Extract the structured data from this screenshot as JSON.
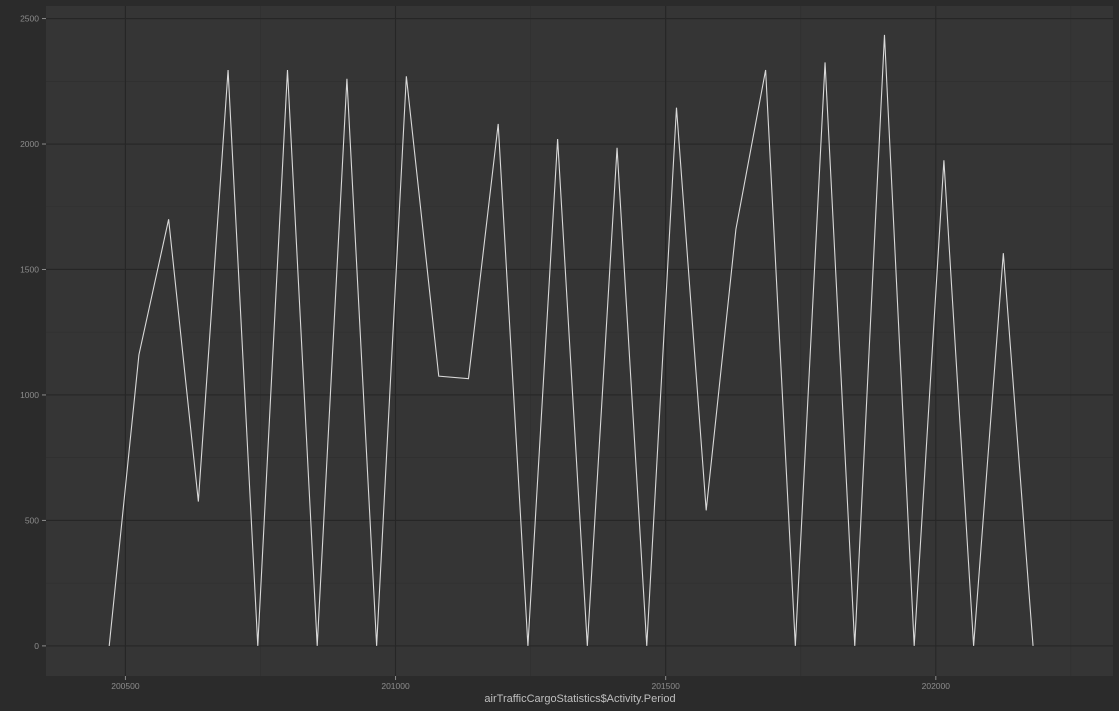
{
  "colors": {
    "page_background": "#2b2b2b",
    "panel_background": "#353535",
    "grid_major": "#262626",
    "grid_minor": "#2f2f2f",
    "line": "#d9d9d9",
    "tick_text": "#8c8c8c",
    "axis_title_text": "#bfbfbf"
  },
  "chart_data": {
    "type": "line",
    "title": "",
    "xlabel": "airTrafficCargoStatistics$Activity.Period",
    "ylabel": "",
    "xlim": [
      200353,
      202328
    ],
    "ylim": [
      -120,
      2550
    ],
    "grid": true,
    "legend": "none",
    "x_ticks": [
      {
        "value": 200500,
        "label": "200500"
      },
      {
        "value": 201000,
        "label": "201000"
      },
      {
        "value": 201500,
        "label": "201500"
      },
      {
        "value": 202000,
        "label": "202000"
      }
    ],
    "y_ticks": [
      {
        "value": 0,
        "label": "0"
      },
      {
        "value": 500,
        "label": "500"
      },
      {
        "value": 1000,
        "label": "1000"
      },
      {
        "value": 1500,
        "label": "1500"
      },
      {
        "value": 2000,
        "label": "2000"
      },
      {
        "value": 2500,
        "label": "2500"
      }
    ],
    "x_minor_ticks": [
      200750,
      201250,
      201750,
      202250
    ],
    "y_minor_ticks": [
      250,
      750,
      1250,
      1750,
      2250
    ],
    "series": [
      {
        "x": [
          200470,
          200525,
          200580,
          200635,
          200690,
          200745,
          200800,
          200855,
          200910,
          200965,
          201020,
          201080,
          201135,
          201190,
          201245,
          201300,
          201355,
          201410,
          201465,
          201520,
          201575,
          201630,
          201685,
          201740,
          201795,
          201850,
          201905,
          201960,
          202015,
          202070,
          202125,
          202180
        ],
        "y": [
          0,
          1160,
          1700,
          575,
          2295,
          0,
          2295,
          0,
          2260,
          0,
          2270,
          1075,
          1065,
          2080,
          0,
          2020,
          0,
          1985,
          0,
          2145,
          540,
          1660,
          2295,
          0,
          2325,
          0,
          2435,
          0,
          1935,
          0,
          1565,
          0
        ]
      }
    ]
  }
}
